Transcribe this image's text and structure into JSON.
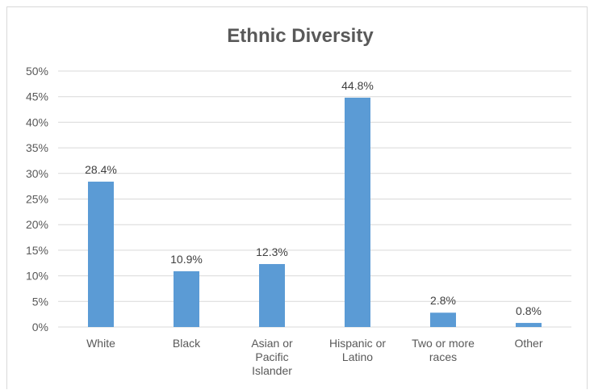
{
  "chart_data": {
    "type": "bar",
    "title": "Ethnic Diversity",
    "xlabel": "",
    "ylabel": "",
    "categories": [
      "White",
      "Black",
      "Asian or Pacific Islander",
      "Hispanic or Latino",
      "Two or more races",
      "Other"
    ],
    "category_lines": [
      [
        "White"
      ],
      [
        "Black"
      ],
      [
        "Asian or",
        "Pacific",
        "Islander"
      ],
      [
        "Hispanic or",
        "Latino"
      ],
      [
        "Two or more",
        "races"
      ],
      [
        "Other"
      ]
    ],
    "values": [
      28.4,
      10.9,
      12.3,
      44.8,
      2.8,
      0.8
    ],
    "data_labels": [
      "28.4%",
      "10.9%",
      "12.3%",
      "44.8%",
      "2.8%",
      "0.8%"
    ],
    "ylim": [
      0,
      50
    ],
    "y_ticks": [
      0,
      5,
      10,
      15,
      20,
      25,
      30,
      35,
      40,
      45,
      50
    ],
    "y_tick_labels": [
      "0%",
      "5%",
      "10%",
      "15%",
      "20%",
      "25%",
      "30%",
      "35%",
      "40%",
      "45%",
      "50%"
    ],
    "grid": true,
    "legend": "none",
    "bar_color": "#5b9bd5"
  }
}
